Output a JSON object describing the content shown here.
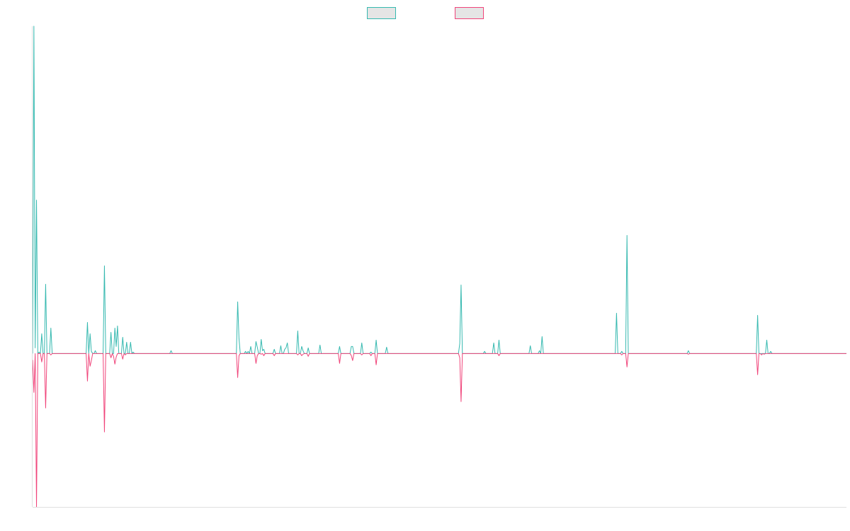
{
  "chart_data": {
    "type": "line",
    "title": "",
    "xlabel": "",
    "ylabel": "",
    "grid": false,
    "legend_position": "top-center",
    "ylim": [
      -217,
      463
    ],
    "series": [
      {
        "key": "positive",
        "color": "#36b9b0",
        "legend_fill": "#e5e5e5",
        "values": [
          0,
          463,
          8,
          217,
          0,
          2,
          0,
          28,
          0,
          0,
          98,
          0,
          0,
          0,
          36,
          0,
          0,
          0,
          0,
          0,
          0,
          0,
          0,
          0,
          0,
          0,
          0,
          0,
          0,
          0,
          0,
          0,
          0,
          0,
          0,
          0,
          0,
          0,
          0,
          0,
          0,
          0,
          44,
          0,
          28,
          3,
          0,
          0,
          4,
          0,
          0,
          0,
          0,
          0,
          0,
          124,
          0,
          0,
          0,
          0,
          30,
          0,
          0,
          36,
          10,
          39,
          0,
          0,
          0,
          23,
          0,
          0,
          16,
          0,
          0,
          16,
          0,
          2,
          0,
          0,
          0,
          0,
          0,
          0,
          0,
          0,
          0,
          0,
          0,
          0,
          0,
          0,
          0,
          0,
          0,
          0,
          0,
          0,
          0,
          0,
          0,
          0,
          0,
          0,
          0,
          0,
          4,
          0,
          0,
          0,
          0,
          0,
          0,
          0,
          0,
          0,
          0,
          0,
          0,
          0,
          0,
          0,
          0,
          0,
          0,
          0,
          0,
          0,
          0,
          0,
          0,
          0,
          0,
          0,
          0,
          0,
          0,
          0,
          0,
          0,
          0,
          0,
          0,
          0,
          0,
          0,
          0,
          0,
          0,
          0,
          0,
          0,
          0,
          0,
          0,
          0,
          0,
          73,
          21,
          0,
          0,
          0,
          0,
          3,
          0,
          3,
          0,
          10,
          0,
          0,
          0,
          17,
          9,
          0,
          0,
          20,
          4,
          6,
          0,
          0,
          0,
          0,
          0,
          0,
          0,
          6,
          0,
          0,
          0,
          0,
          11,
          0,
          0,
          6,
          8,
          15,
          0,
          0,
          0,
          0,
          0,
          0,
          0,
          32,
          0,
          0,
          10,
          4,
          0,
          0,
          0,
          8,
          0,
          0,
          0,
          0,
          0,
          0,
          0,
          0,
          12,
          0,
          0,
          0,
          0,
          0,
          0,
          0,
          0,
          0,
          0,
          0,
          0,
          0,
          0,
          10,
          0,
          0,
          0,
          0,
          0,
          0,
          0,
          0,
          10,
          10,
          0,
          0,
          0,
          0,
          0,
          0,
          15,
          0,
          0,
          0,
          0,
          0,
          0,
          2,
          0,
          0,
          0,
          19,
          0,
          0,
          0,
          0,
          0,
          0,
          0,
          9,
          0,
          0,
          0,
          0,
          0,
          0,
          0,
          0,
          0,
          0,
          0,
          0,
          0,
          0,
          0,
          0,
          0,
          0,
          0,
          0,
          0,
          0,
          0,
          0,
          0,
          0,
          0,
          0,
          0,
          0,
          0,
          0,
          0,
          0,
          0,
          0,
          0,
          0,
          0,
          0,
          0,
          0,
          0,
          0,
          0,
          0,
          0,
          0,
          0,
          0,
          0,
          0,
          0,
          0,
          0,
          14,
          97,
          0,
          0,
          0,
          0,
          0,
          0,
          0,
          0,
          0,
          0,
          0,
          0,
          0,
          0,
          0,
          0,
          0,
          3,
          0,
          0,
          0,
          0,
          0,
          0,
          15,
          0,
          0,
          0,
          19,
          0,
          0,
          0,
          0,
          0,
          0,
          0,
          0,
          0,
          0,
          0,
          0,
          0,
          0,
          0,
          0,
          0,
          0,
          0,
          0,
          0,
          0,
          0,
          11,
          0,
          0,
          0,
          0,
          0,
          0,
          4,
          0,
          24,
          0,
          0,
          0,
          0,
          0,
          0,
          0,
          0,
          0,
          0,
          0,
          0,
          0,
          0,
          0,
          0,
          0,
          0,
          0,
          0,
          0,
          0,
          0,
          0,
          0,
          0,
          0,
          0,
          0,
          0,
          0,
          0,
          0,
          0,
          0,
          0,
          0,
          0,
          0,
          0,
          0,
          0,
          0,
          0,
          0,
          0,
          0,
          0,
          0,
          0,
          0,
          0,
          0,
          0,
          0,
          0,
          57,
          0,
          0,
          0,
          3,
          0,
          0,
          0,
          167,
          0,
          0,
          0,
          0,
          0,
          0,
          0,
          0,
          0,
          0,
          0,
          0,
          0,
          0,
          0,
          0,
          0,
          0,
          0,
          0,
          0,
          0,
          0,
          0,
          0,
          0,
          0,
          0,
          0,
          0,
          0,
          0,
          0,
          0,
          0,
          0,
          0,
          0,
          0,
          0,
          0,
          0,
          0,
          0,
          0,
          0,
          4,
          0,
          0,
          0,
          0,
          0,
          0,
          0,
          0,
          0,
          0,
          0,
          0,
          0,
          0,
          0,
          0,
          0,
          0,
          0,
          0,
          0,
          0,
          0,
          0,
          0,
          0,
          0,
          0,
          0,
          0,
          0,
          0,
          0,
          0,
          0,
          0,
          0,
          0,
          0,
          0,
          0,
          0,
          0,
          0,
          0,
          0,
          0,
          0,
          0,
          0,
          0,
          0,
          54,
          0,
          0,
          0,
          0,
          0,
          0,
          19,
          0,
          0,
          3,
          0,
          0,
          0,
          0,
          0,
          0,
          0,
          0,
          0,
          0,
          0,
          0,
          0,
          0,
          0,
          0,
          0,
          0,
          0,
          0,
          0,
          0,
          0,
          0,
          0,
          0,
          0,
          0,
          0,
          0,
          0,
          0,
          0,
          0,
          0,
          0,
          0,
          0,
          0,
          0,
          0,
          0,
          0,
          0,
          0,
          0,
          0,
          0,
          0,
          0,
          0,
          0,
          0,
          0,
          0,
          0,
          0,
          0
        ]
      },
      {
        "key": "negative",
        "color": "#f0447a",
        "legend_fill": "#e5e5e5",
        "values": [
          -9,
          -55,
          0,
          -217,
          0,
          0,
          0,
          -12,
          0,
          0,
          -77,
          0,
          0,
          0,
          -2,
          0,
          0,
          0,
          0,
          0,
          0,
          0,
          0,
          0,
          0,
          0,
          0,
          0,
          0,
          0,
          0,
          0,
          0,
          0,
          0,
          0,
          0,
          0,
          0,
          0,
          0,
          0,
          -39,
          0,
          -18,
          -10,
          0,
          0,
          0,
          0,
          0,
          0,
          0,
          0,
          0,
          -111,
          0,
          0,
          0,
          0,
          -6,
          0,
          -4,
          -15,
          -5,
          0,
          0,
          0,
          0,
          -8,
          0,
          -2,
          0,
          0,
          0,
          0,
          0,
          0,
          0,
          0,
          0,
          0,
          0,
          0,
          0,
          0,
          0,
          0,
          0,
          0,
          0,
          0,
          0,
          0,
          0,
          0,
          0,
          0,
          0,
          0,
          0,
          0,
          0,
          0,
          0,
          0,
          0,
          0,
          0,
          0,
          0,
          0,
          0,
          0,
          0,
          0,
          0,
          0,
          0,
          0,
          0,
          0,
          0,
          0,
          0,
          0,
          0,
          0,
          0,
          0,
          0,
          0,
          0,
          0,
          0,
          0,
          0,
          0,
          0,
          0,
          0,
          0,
          0,
          0,
          0,
          0,
          0,
          0,
          0,
          0,
          0,
          0,
          0,
          0,
          0,
          0,
          0,
          -34,
          -3,
          0,
          0,
          0,
          0,
          0,
          0,
          0,
          0,
          0,
          0,
          0,
          0,
          -14,
          -3,
          0,
          0,
          -1,
          0,
          -3,
          0,
          0,
          0,
          0,
          0,
          0,
          0,
          -3,
          0,
          0,
          0,
          0,
          0,
          0,
          0,
          0,
          0,
          0,
          0,
          0,
          0,
          0,
          0,
          0,
          0,
          -2,
          0,
          0,
          -3,
          -1,
          0,
          0,
          0,
          -4,
          0,
          0,
          0,
          0,
          0,
          0,
          0,
          0,
          0,
          0,
          0,
          0,
          0,
          0,
          0,
          0,
          0,
          0,
          0,
          0,
          0,
          0,
          0,
          -14,
          0,
          0,
          0,
          0,
          0,
          0,
          0,
          0,
          -3,
          -10,
          0,
          0,
          0,
          0,
          0,
          0,
          -2,
          0,
          0,
          0,
          0,
          0,
          0,
          -3,
          0,
          0,
          0,
          -16,
          0,
          0,
          0,
          0,
          0,
          0,
          0,
          0,
          0,
          0,
          0,
          0,
          0,
          0,
          0,
          0,
          0,
          0,
          0,
          0,
          0,
          0,
          0,
          0,
          0,
          0,
          0,
          0,
          0,
          0,
          0,
          0,
          0,
          0,
          0,
          0,
          0,
          0,
          0,
          0,
          0,
          0,
          0,
          0,
          0,
          0,
          0,
          0,
          0,
          0,
          0,
          0,
          0,
          0,
          0,
          0,
          0,
          0,
          0,
          0,
          0,
          0,
          0,
          -6,
          -68,
          0,
          0,
          0,
          0,
          0,
          0,
          0,
          0,
          0,
          0,
          0,
          0,
          0,
          0,
          0,
          0,
          0,
          0,
          0,
          0,
          0,
          0,
          0,
          0,
          0,
          0,
          0,
          0,
          -3,
          0,
          0,
          0,
          0,
          0,
          0,
          0,
          0,
          0,
          0,
          0,
          0,
          0,
          0,
          0,
          0,
          0,
          0,
          0,
          0,
          0,
          0,
          0,
          0,
          0,
          0,
          0,
          0,
          0,
          0,
          0,
          0,
          0,
          0,
          0,
          0,
          0,
          0,
          0,
          0,
          0,
          0,
          0,
          0,
          0,
          0,
          0,
          0,
          0,
          0,
          0,
          0,
          0,
          0,
          0,
          0,
          0,
          0,
          0,
          0,
          0,
          0,
          0,
          0,
          0,
          0,
          0,
          0,
          0,
          0,
          0,
          0,
          0,
          0,
          0,
          0,
          0,
          0,
          0,
          0,
          0,
          0,
          0,
          0,
          0,
          0,
          0,
          0,
          0,
          0,
          0,
          0,
          0,
          -2,
          0,
          0,
          0,
          -19,
          0,
          0,
          0,
          0,
          0,
          0,
          0,
          0,
          0,
          0,
          0,
          0,
          0,
          0,
          0,
          0,
          0,
          0,
          0,
          0,
          0,
          0,
          0,
          0,
          0,
          0,
          0,
          0,
          0,
          0,
          0,
          0,
          0,
          0,
          0,
          0,
          0,
          0,
          0,
          0,
          0,
          0,
          0,
          0,
          0,
          0,
          -1,
          0,
          0,
          0,
          0,
          0,
          0,
          0,
          0,
          0,
          0,
          0,
          0,
          0,
          0,
          0,
          0,
          0,
          0,
          0,
          0,
          0,
          0,
          0,
          0,
          0,
          0,
          0,
          0,
          0,
          0,
          0,
          0,
          0,
          0,
          0,
          0,
          0,
          0,
          0,
          0,
          0,
          0,
          0,
          0,
          0,
          0,
          0,
          0,
          0,
          0,
          0,
          0,
          -30,
          0,
          0,
          -2,
          0,
          -1,
          0,
          0,
          0,
          0,
          0,
          0,
          0,
          0,
          0,
          0,
          0,
          0,
          0,
          0,
          0,
          0,
          0,
          0,
          0,
          0,
          0,
          0,
          0,
          0,
          0,
          0,
          0,
          0,
          0,
          0,
          0,
          0,
          0,
          0,
          0,
          0,
          0,
          0,
          0,
          0,
          0,
          0,
          0,
          0,
          0,
          0,
          0,
          0,
          0,
          0,
          0,
          0,
          0,
          0,
          0,
          0,
          0,
          0,
          0,
          0,
          0,
          0,
          0
        ]
      }
    ]
  }
}
